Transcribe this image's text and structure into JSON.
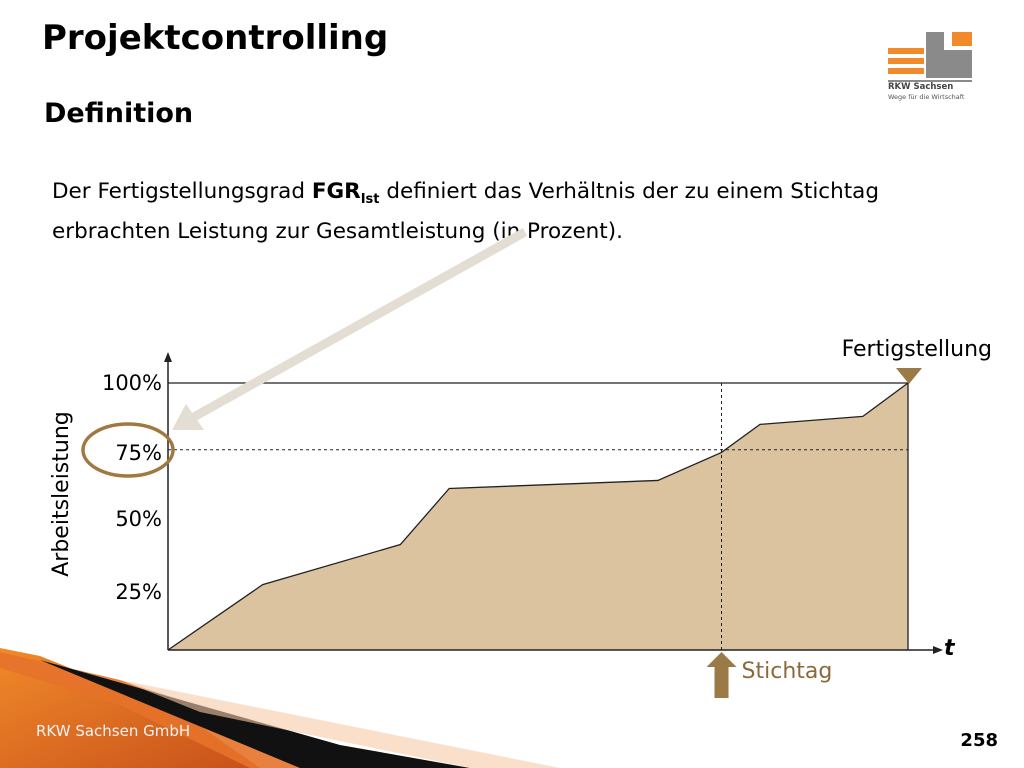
{
  "slide": {
    "title": "Projektcontrolling",
    "subtitle": "Definition",
    "text_before": "Der Fertigstellungsgrad ",
    "text_bold": "FGR",
    "text_sub": "Ist",
    "text_after": " definiert das Verhältnis der zu einem Stichtag erbrachten Leistung zur Gesamtleistung (in Prozent).",
    "footer_company": "RKW Sachsen GmbH",
    "page_number": "258"
  },
  "logo": {
    "name": "RKW Sachsen",
    "tagline": "Wege für die Wirtschaft",
    "colors": {
      "orange": "#f18a2b",
      "gray": "#8a8a8a"
    }
  },
  "chart_data": {
    "type": "area",
    "ylabel": "Arbeitsleistung",
    "xlabel": "t",
    "y_ticks": [
      "25%",
      "50%",
      "75%",
      "100%"
    ],
    "ylim": [
      0,
      100
    ],
    "xlim": [
      0,
      100
    ],
    "points": [
      {
        "x": 0,
        "y": 0
      },
      {
        "x": 12.8,
        "y": 24.5
      },
      {
        "x": 31.4,
        "y": 39.5
      },
      {
        "x": 38.0,
        "y": 60.5
      },
      {
        "x": 66.2,
        "y": 63.5
      },
      {
        "x": 74.8,
        "y": 74.0
      },
      {
        "x": 80.0,
        "y": 84.5
      },
      {
        "x": 93.9,
        "y": 87.5
      },
      {
        "x": 100,
        "y": 100
      }
    ],
    "stichtag_x": 74.8,
    "stichtag_label": "Stichtag",
    "completion_label": "Fertigstellung",
    "highlight_value": 75,
    "colors": {
      "fill": "#dcc3a0",
      "stroke": "#222222",
      "arrow": "#e3ddd3",
      "circle": "#a07840",
      "stichtag_arrow": "#9c7a48",
      "stichtag_text": "#8a6a3c",
      "triangle": "#9c7a48"
    }
  }
}
